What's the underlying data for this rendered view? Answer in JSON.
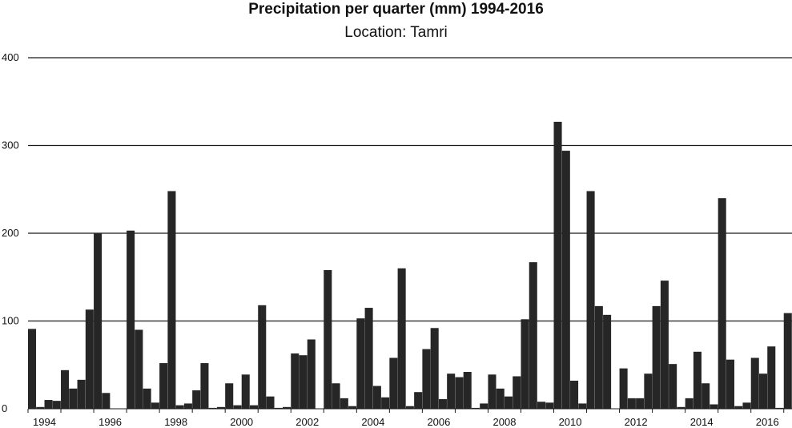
{
  "chart_data": {
    "type": "bar",
    "title": "Precipitation per quarter (mm) 1994-2016",
    "subtitle": "Location: Tamri",
    "xlabel": "",
    "ylabel": "",
    "ylim": [
      0,
      400
    ],
    "yticks": [
      0,
      100,
      200,
      300,
      400
    ],
    "grid": true,
    "bar_color": "#262626",
    "x_tick_labels": [
      "1994",
      "1996",
      "1998",
      "2000",
      "2002",
      "2004",
      "2006",
      "2008",
      "2010",
      "2012",
      "2014",
      "2016"
    ],
    "series": [
      {
        "values": [
          91,
          2,
          10,
          9,
          44,
          23,
          33,
          113,
          200,
          18,
          0,
          0,
          203,
          90,
          23,
          7,
          52,
          248,
          4,
          6,
          21,
          52,
          1,
          2,
          29,
          4,
          39,
          4,
          118,
          14,
          1,
          2,
          63,
          61,
          79,
          0,
          158,
          29,
          12,
          3,
          103,
          115,
          26,
          13,
          58,
          160,
          3,
          19,
          68,
          92,
          11,
          40,
          36,
          42,
          1,
          6,
          39,
          23,
          14,
          37,
          102,
          167,
          8,
          7,
          327,
          294,
          32,
          6,
          248,
          117,
          107,
          0,
          46,
          12,
          12,
          40,
          117,
          146,
          51,
          2,
          12,
          65,
          29,
          5,
          240,
          56,
          3,
          7,
          58,
          40,
          71,
          1,
          109
        ]
      }
    ]
  }
}
